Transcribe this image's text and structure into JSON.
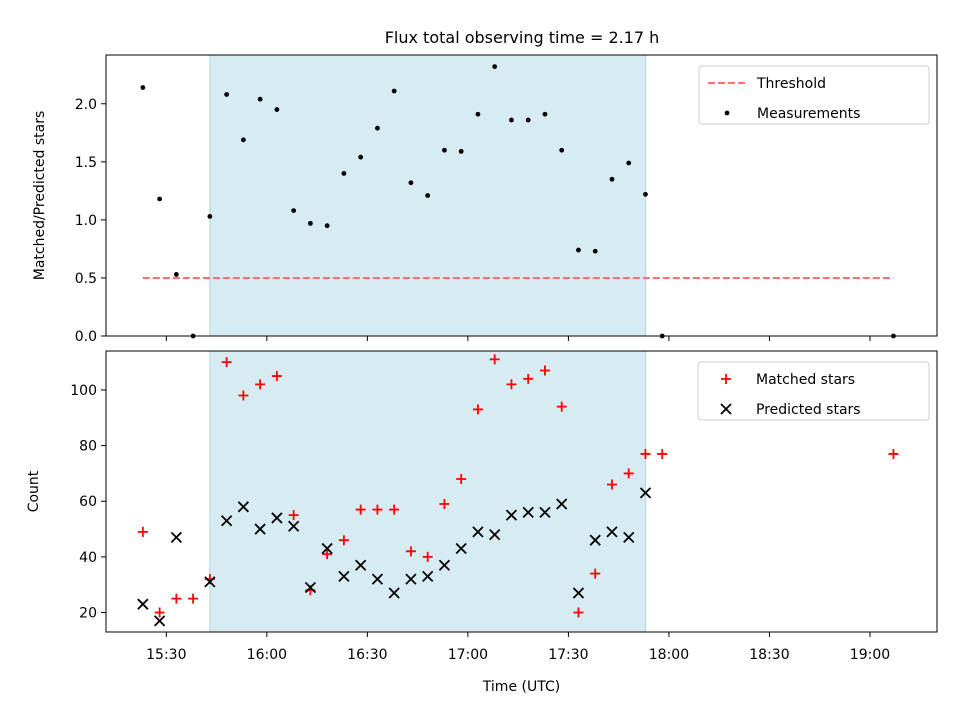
{
  "figure": {
    "title": "Flux total observing time = 2.17 h"
  },
  "colors": {
    "measurement": "#000000",
    "threshold": "#ff6f6f",
    "matched": "#ff0000",
    "predicted": "#000000",
    "span": "#add8e6"
  },
  "chart_data": [
    {
      "type": "scatter",
      "title": "Flux total observing time = 2.17 h",
      "xlabel": "",
      "ylabel": "Matched/Predicted stars",
      "xlim": [
        "15:12",
        "19:20"
      ],
      "ylim": [
        0,
        2.42
      ],
      "yticks": [
        0.0,
        0.5,
        1.0,
        1.5,
        2.0
      ],
      "ytick_labels": [
        "0.0",
        "0.5",
        "1.0",
        "1.5",
        "2.0"
      ],
      "xticks": [
        "15:30",
        "16:00",
        "16:30",
        "17:00",
        "17:30",
        "18:00",
        "18:30",
        "19:00"
      ],
      "shaded_span": [
        "15:43",
        "17:53"
      ],
      "grid": false,
      "legend": {
        "placement": "top-right",
        "entries": [
          "Threshold",
          "Measurements"
        ]
      },
      "series": [
        {
          "name": "Threshold",
          "kind": "line",
          "style": "dashed",
          "x": [
            "15:23",
            "19:07"
          ],
          "y": [
            0.5,
            0.5
          ]
        },
        {
          "name": "Measurements",
          "kind": "scatter",
          "x": [
            "15:23",
            "15:28",
            "15:33",
            "15:38",
            "15:43",
            "15:48",
            "15:53",
            "15:58",
            "16:03",
            "16:08",
            "16:13",
            "16:18",
            "16:23",
            "16:28",
            "16:33",
            "16:38",
            "16:43",
            "16:48",
            "16:53",
            "16:58",
            "17:03",
            "17:08",
            "17:13",
            "17:18",
            "17:23",
            "17:28",
            "17:33",
            "17:38",
            "17:43",
            "17:48",
            "17:53",
            "17:58",
            "19:07"
          ],
          "y": [
            2.14,
            1.18,
            0.53,
            0.0,
            1.03,
            2.08,
            1.69,
            2.04,
            1.95,
            1.08,
            0.97,
            0.95,
            1.4,
            1.54,
            1.79,
            2.11,
            1.32,
            1.21,
            1.6,
            1.59,
            1.91,
            2.32,
            1.86,
            1.86,
            1.91,
            1.6,
            0.74,
            0.73,
            1.35,
            1.49,
            1.22,
            0.0,
            0.0
          ]
        }
      ]
    },
    {
      "type": "scatter",
      "title": "",
      "xlabel": "Time (UTC)",
      "ylabel": "Count",
      "xlim": [
        "15:12",
        "19:20"
      ],
      "ylim": [
        13,
        114
      ],
      "yticks": [
        20,
        40,
        60,
        80,
        100
      ],
      "ytick_labels": [
        "20",
        "40",
        "60",
        "80",
        "100"
      ],
      "xticks": [
        "15:30",
        "16:00",
        "16:30",
        "17:00",
        "17:30",
        "18:00",
        "18:30",
        "19:00"
      ],
      "xtick_labels": [
        "15:30",
        "16:00",
        "16:30",
        "17:00",
        "17:30",
        "18:00",
        "18:30",
        "19:00"
      ],
      "shaded_span": [
        "15:43",
        "17:53"
      ],
      "grid": false,
      "legend": {
        "placement": "top-right",
        "entries": [
          "Matched stars",
          "Predicted stars"
        ]
      },
      "series": [
        {
          "name": "Matched stars",
          "kind": "scatter",
          "marker": "+",
          "x": [
            "15:23",
            "15:28",
            "15:33",
            "15:38",
            "15:43",
            "15:48",
            "15:53",
            "15:58",
            "16:03",
            "16:08",
            "16:13",
            "16:18",
            "16:23",
            "16:28",
            "16:33",
            "16:38",
            "16:43",
            "16:48",
            "16:53",
            "16:58",
            "17:03",
            "17:08",
            "17:13",
            "17:18",
            "17:23",
            "17:28",
            "17:33",
            "17:38",
            "17:43",
            "17:48",
            "17:53",
            "17:58",
            "19:07"
          ],
          "y": [
            49,
            20,
            25,
            25,
            32,
            110,
            98,
            102,
            105,
            55,
            28,
            41,
            46,
            57,
            57,
            57,
            42,
            40,
            59,
            68,
            93,
            111,
            102,
            104,
            107,
            94,
            20,
            34,
            66,
            70,
            77,
            77,
            77
          ]
        },
        {
          "name": "Predicted stars",
          "kind": "scatter",
          "marker": "x",
          "x": [
            "15:23",
            "15:28",
            "15:33",
            "15:43",
            "15:48",
            "15:53",
            "15:58",
            "16:03",
            "16:08",
            "16:13",
            "16:18",
            "16:23",
            "16:28",
            "16:33",
            "16:38",
            "16:43",
            "16:48",
            "16:53",
            "16:58",
            "17:03",
            "17:08",
            "17:13",
            "17:18",
            "17:23",
            "17:28",
            "17:33",
            "17:38",
            "17:43",
            "17:48",
            "17:53"
          ],
          "y": [
            23,
            17,
            47,
            31,
            53,
            58,
            50,
            54,
            51,
            29,
            43,
            33,
            37,
            32,
            27,
            32,
            33,
            37,
            43,
            49,
            48,
            55,
            56,
            56,
            59,
            27,
            46,
            49,
            47,
            63
          ]
        }
      ]
    }
  ]
}
